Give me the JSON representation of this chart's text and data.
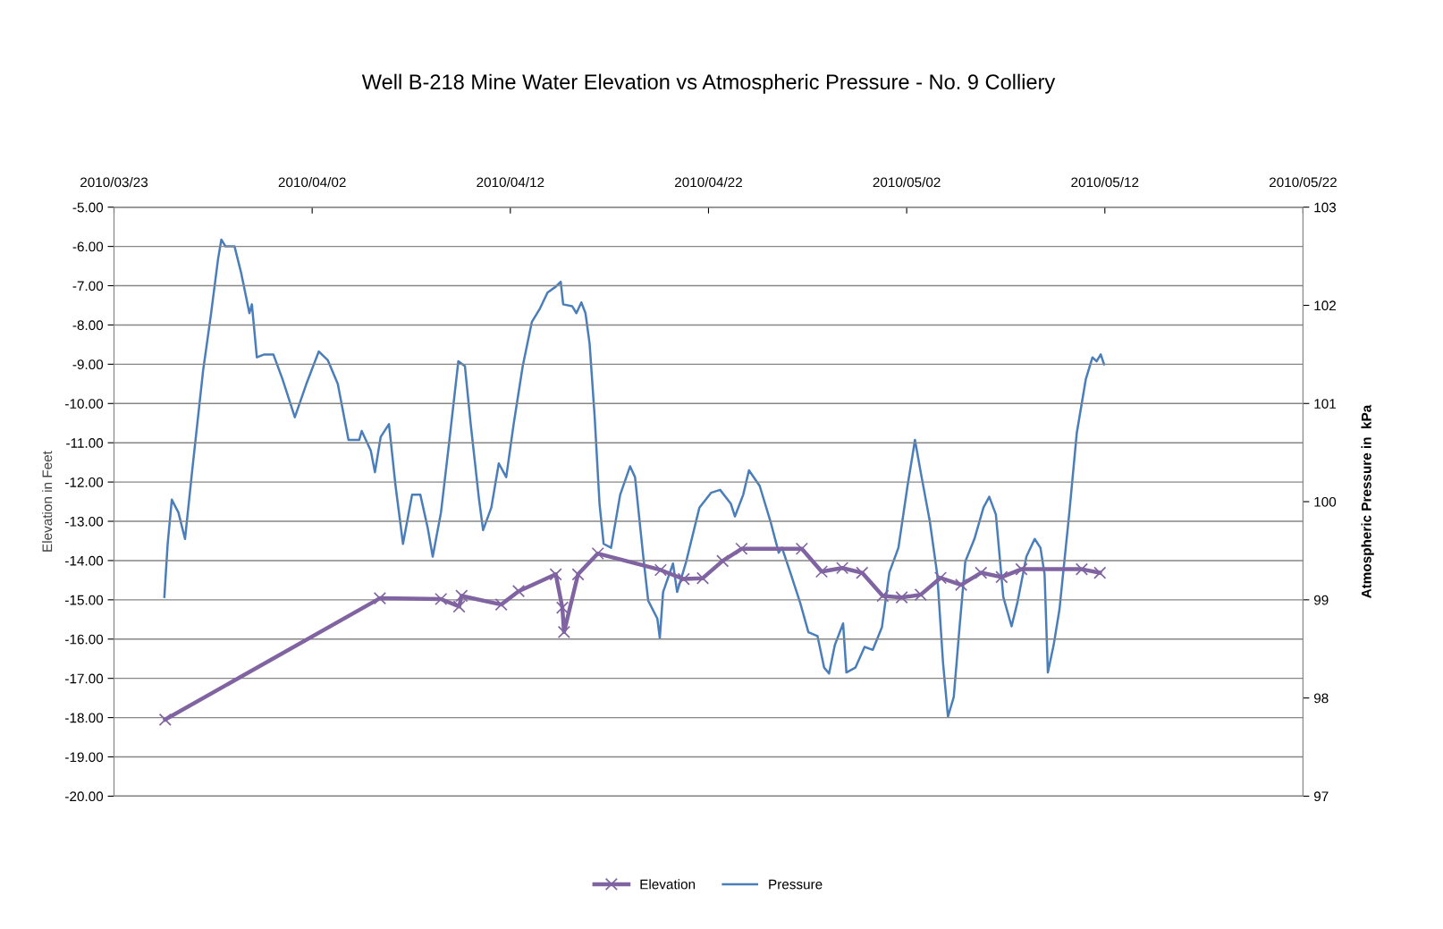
{
  "chart_data": {
    "type": "line",
    "title": "Well B-218 Mine Water Elevation vs Atmospheric Pressure - No. 9 Colliery",
    "ylabel": "Elevation in Feet",
    "y2label": "Atmospheric Pressure in  kPa",
    "xlim": [
      "2010-03-23",
      "2010-05-22"
    ],
    "xticks": [
      {
        "value": "2010-03-23",
        "label": "2010/03/23"
      },
      {
        "value": "2010-04-02",
        "label": "2010/04/02"
      },
      {
        "value": "2010-04-12",
        "label": "2010/04/12"
      },
      {
        "value": "2010-04-22",
        "label": "2010/04/22"
      },
      {
        "value": "2010-05-02",
        "label": "2010/05/02"
      },
      {
        "value": "2010-05-12",
        "label": "2010/05/12"
      },
      {
        "value": "2010-05-22",
        "label": "2010/05/22"
      }
    ],
    "ylim": [
      -20,
      -5
    ],
    "yticks": [
      {
        "value": -5,
        "label": "-5.00"
      },
      {
        "value": -6,
        "label": "-6.00"
      },
      {
        "value": -7,
        "label": "-7.00"
      },
      {
        "value": -8,
        "label": "-8.00"
      },
      {
        "value": -9,
        "label": "-9.00"
      },
      {
        "value": -10,
        "label": "-10.00"
      },
      {
        "value": -11,
        "label": "-11.00"
      },
      {
        "value": -12,
        "label": "-12.00"
      },
      {
        "value": -13,
        "label": "-13.00"
      },
      {
        "value": -14,
        "label": "-14.00"
      },
      {
        "value": -15,
        "label": "-15.00"
      },
      {
        "value": -16,
        "label": "-16.00"
      },
      {
        "value": -17,
        "label": "-17.00"
      },
      {
        "value": -18,
        "label": "-18.00"
      },
      {
        "value": -19,
        "label": "-19.00"
      },
      {
        "value": -20,
        "label": "-20.00"
      }
    ],
    "y2lim": [
      97,
      103
    ],
    "y2ticks": [
      97,
      98,
      99,
      100,
      101,
      102,
      103
    ],
    "grid": "y",
    "legend": "bottom",
    "series": [
      {
        "name": "Elevation",
        "color": "#8064a2",
        "marker": "cross",
        "line_style": "solid",
        "x": [
          "2010-03-25T14:00",
          "2010-04-05T10:00",
          "2010-04-08T12:00",
          "2010-04-09T10:00",
          "2010-04-09T13:00",
          "2010-04-11T13:00",
          "2010-04-12T10:00",
          "2010-04-14T07:00",
          "2010-04-14T15:00",
          "2010-04-14T17:00",
          "2010-04-15T10:00",
          "2010-04-16T10:00",
          "2010-04-19T14:00",
          "2010-04-20T18:00",
          "2010-04-21T17:00",
          "2010-04-22T17:00",
          "2010-04-23T16:00",
          "2010-04-26T17:00",
          "2010-04-27T17:00",
          "2010-04-28T18:00",
          "2010-04-29T18:00",
          "2010-04-30T19:00",
          "2010-05-01T18:00",
          "2010-05-02T17:00",
          "2010-05-03T17:00",
          "2010-05-04T18:00",
          "2010-05-05T18:00",
          "2010-05-06T19:00",
          "2010-05-07T19:00",
          "2010-05-10T20:00",
          "2010-05-11T18:00"
        ],
        "values": [
          -18.05,
          -14.96,
          -14.98,
          -15.17,
          -14.9,
          -15.12,
          -14.78,
          -14.35,
          -15.2,
          -15.82,
          -14.35,
          -13.82,
          -14.24,
          -14.47,
          -14.45,
          -14.01,
          -13.7,
          -13.7,
          -14.28,
          -14.19,
          -14.31,
          -14.9,
          -14.94,
          -14.87,
          -14.44,
          -14.62,
          -14.31,
          -14.42,
          -14.22,
          -14.22,
          -14.31
        ]
      },
      {
        "name": "Pressure",
        "color": "#4a7ebb",
        "axis": "y2",
        "marker": "none",
        "line_style": "solid",
        "x": [
          "2010-03-25T13:00",
          "2010-03-25T17:00",
          "2010-03-25T22:00",
          "2010-03-26T06:00",
          "2010-03-26T14:00",
          "2010-03-26T23:00",
          "2010-03-27T12:00",
          "2010-03-27T21:00",
          "2010-03-28T06:00",
          "2010-03-28T10:00",
          "2010-03-28T15:00",
          "2010-03-29T02:00",
          "2010-03-29T10:00",
          "2010-03-29T20:00",
          "2010-03-29T23:00",
          "2010-03-30T05:00",
          "2010-03-30T14:00",
          "2010-03-31T01:00",
          "2010-03-31T12:00",
          "2010-04-01T03:00",
          "2010-04-01T17:00",
          "2010-04-02T08:00",
          "2010-04-02T19:00",
          "2010-04-03T07:00",
          "2010-04-03T20:00",
          "2010-04-04T09:00",
          "2010-04-04T12:00",
          "2010-04-04T23:00",
          "2010-04-05T04:00",
          "2010-04-05T11:00",
          "2010-04-05T21:00",
          "2010-04-06T05:00",
          "2010-04-06T14:00",
          "2010-04-07T01:00",
          "2010-04-07T11:00",
          "2010-04-07T20:00",
          "2010-04-08T02:00",
          "2010-04-08T12:00",
          "2010-04-08T22:00",
          "2010-04-09T09:00",
          "2010-04-09T17:00",
          "2010-04-10T00:00",
          "2010-04-10T10:00",
          "2010-04-10T15:00",
          "2010-04-11T01:00",
          "2010-04-11T10:00",
          "2010-04-11T19:00",
          "2010-04-12T04:00",
          "2010-04-12T15:00",
          "2010-04-13T02:00",
          "2010-04-13T12:00",
          "2010-04-13T21:00",
          "2010-04-14T07:00",
          "2010-04-14T13:00",
          "2010-04-14T16:00",
          "2010-04-15T03:00",
          "2010-04-15T08:00",
          "2010-04-15T14:00",
          "2010-04-15T19:00",
          "2010-04-16T00:00",
          "2010-04-16T06:00",
          "2010-04-16T12:00",
          "2010-04-16T17:00",
          "2010-04-17T02:00",
          "2010-04-17T13:00",
          "2010-04-18T01:00",
          "2010-04-18T07:00",
          "2010-04-18T17:00",
          "2010-04-18T23:00",
          "2010-04-19T10:00",
          "2010-04-19T13:00",
          "2010-04-19T17:00",
          "2010-04-20T05:00",
          "2010-04-20T10:00",
          "2010-04-20T21:00",
          "2010-04-21T13:00",
          "2010-04-22T03:00",
          "2010-04-22T14:00",
          "2010-04-23T03:00",
          "2010-04-23T08:00",
          "2010-04-23T18:00",
          "2010-04-24T01:00",
          "2010-04-24T14:00",
          "2010-04-25T03:00",
          "2010-04-25T13:00",
          "2010-04-25T17:00",
          "2010-04-26T03:00",
          "2010-04-26T15:00",
          "2010-04-27T01:00",
          "2010-04-27T12:00",
          "2010-04-27T20:00",
          "2010-04-28T02:00",
          "2010-04-28T09:00",
          "2010-04-28T19:00",
          "2010-04-28T23:00",
          "2010-04-29T10:00",
          "2010-04-29T21:00",
          "2010-04-30T07:00",
          "2010-04-30T18:00",
          "2010-05-01T03:00",
          "2010-05-01T14:00",
          "2010-05-02T01:00",
          "2010-05-02T08:00",
          "2010-05-02T10:00",
          "2010-05-02T17:00",
          "2010-05-03T04:00",
          "2010-05-03T13:00",
          "2010-05-03T20:00",
          "2010-05-04T02:00",
          "2010-05-04T09:00",
          "2010-05-04T16:00",
          "2010-05-04T23:00",
          "2010-05-05T10:00",
          "2010-05-05T21:00",
          "2010-05-06T04:00",
          "2010-05-06T12:00",
          "2010-05-06T21:00",
          "2010-05-07T07:00",
          "2010-05-07T14:00",
          "2010-05-08T01:00",
          "2010-05-08T11:00",
          "2010-05-08T18:00",
          "2010-05-08T23:00",
          "2010-05-09T03:00",
          "2010-05-09T10:00",
          "2010-05-09T17:00",
          "2010-05-10T05:00",
          "2010-05-10T14:00",
          "2010-05-11T01:00",
          "2010-05-11T09:00",
          "2010-05-11T14:00",
          "2010-05-11T19:00",
          "2010-05-11T23:00"
        ],
        "values": [
          99.03,
          99.57,
          100.02,
          99.89,
          99.62,
          100.34,
          101.34,
          101.88,
          102.47,
          102.67,
          102.6,
          102.6,
          102.33,
          101.92,
          102.01,
          101.47,
          101.5,
          101.5,
          101.25,
          100.86,
          101.2,
          101.53,
          101.44,
          101.2,
          100.63,
          100.63,
          100.72,
          100.52,
          100.3,
          100.66,
          100.79,
          100.16,
          99.57,
          100.07,
          100.07,
          99.73,
          99.44,
          99.89,
          100.61,
          101.43,
          101.38,
          100.79,
          100.03,
          99.71,
          99.94,
          100.39,
          100.25,
          100.79,
          101.38,
          101.83,
          101.97,
          102.13,
          102.19,
          102.24,
          102.01,
          101.99,
          101.92,
          102.03,
          101.92,
          101.61,
          100.88,
          99.98,
          99.57,
          99.53,
          100.07,
          100.36,
          100.25,
          99.44,
          98.99,
          98.81,
          98.61,
          99.08,
          99.37,
          99.08,
          99.39,
          99.94,
          100.09,
          100.12,
          99.98,
          99.85,
          100.07,
          100.32,
          100.16,
          99.8,
          99.48,
          99.53,
          99.28,
          98.97,
          98.67,
          98.63,
          98.31,
          98.25,
          98.54,
          98.76,
          98.26,
          98.31,
          98.52,
          98.49,
          98.72,
          99.28,
          99.53,
          100.16,
          100.52,
          100.63,
          100.3,
          99.8,
          99.26,
          98.36,
          97.81,
          98.01,
          98.72,
          99.39,
          99.62,
          99.94,
          100.05,
          99.87,
          99.03,
          98.73,
          98.97,
          99.44,
          99.62,
          99.53,
          99.26,
          98.26,
          98.54,
          98.9,
          99.89,
          100.7,
          101.25,
          101.47,
          101.43,
          101.5,
          101.4
        ]
      }
    ]
  }
}
